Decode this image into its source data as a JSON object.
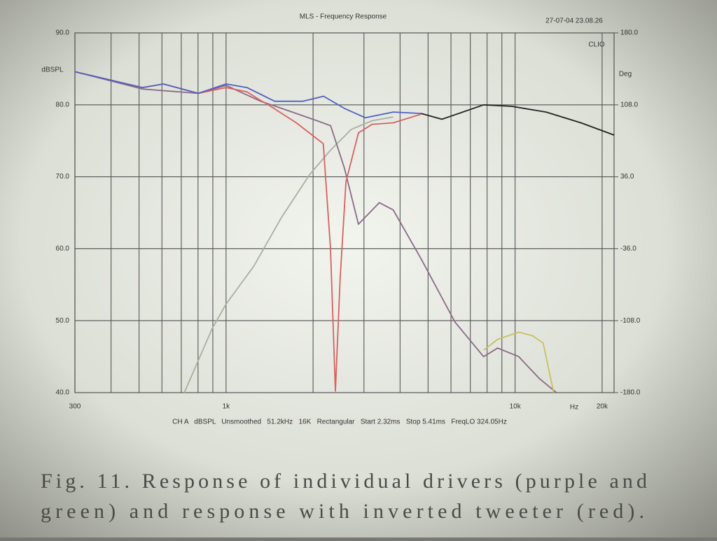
{
  "chart_data": {
    "type": "line",
    "title": "MLS - Frequency Response",
    "timestamp": "27-07-04 23.08.26",
    "ylabel": "dBSPL",
    "y2label": "Deg",
    "brand": "CLIO",
    "xlabel": "Hz",
    "footer": "CH A   dBSPL   Unsmoothed   51.2kHz   16K   Rectangular   Start 2.32ms   Stop 5.41ms   FreqLO 324.05Hz",
    "caption": [
      "Fig. 11. Response of individual drivers (purple and",
      "green) and response with inverted tweeter (red)."
    ],
    "xscale": "log",
    "grid": true,
    "xlim": [
      300,
      22000
    ],
    "xticks": [
      300,
      {
        "value": 1000,
        "label": "1k"
      },
      {
        "value": 10000,
        "label": "10k"
      },
      {
        "value": 20000,
        "label": "20k"
      }
    ],
    "xminorticks": [
      400,
      500,
      600,
      700,
      800,
      900,
      2000,
      3000,
      4000,
      5000,
      6000,
      7000,
      8000,
      9000
    ],
    "ylim": [
      40,
      90
    ],
    "yticks": [
      {
        "value": 40,
        "label": "40.0"
      },
      {
        "value": 50,
        "label": "50.0"
      },
      {
        "value": 60,
        "label": "60.0"
      },
      {
        "value": 70,
        "label": "70.0"
      },
      {
        "value": 80,
        "label": "80.0"
      },
      {
        "value": 90,
        "label": "90.0"
      }
    ],
    "y2lim": [
      -180,
      180
    ],
    "y2ticks": [
      {
        "value": -180,
        "label": "-180.0"
      },
      {
        "value": -108,
        "label": "-108.0"
      },
      {
        "value": -36,
        "label": "-36.0"
      },
      {
        "value": 36,
        "label": "36.0"
      },
      {
        "value": 108,
        "label": "108.0"
      },
      {
        "value": 180,
        "label": "180.0"
      }
    ],
    "series": [
      {
        "color": "#a8b0a0",
        "x": [
          717,
          895,
          1000,
          1248,
          1558,
          1946,
          2298,
          2713,
          3204,
          3788
        ],
        "values": [
          40,
          48.9,
          52.3,
          57.6,
          64.4,
          70.3,
          73.7,
          76.6,
          77.8,
          78.3
        ]
      },
      {
        "color": "#8a6a88",
        "x": [
          300,
          514,
          801,
          1000,
          1318,
          1558,
          2060,
          2300,
          2568,
          2870,
          3390,
          3788,
          4729,
          6200,
          7783,
          8700,
          10300,
          12100,
          13900
        ],
        "values": [
          84.6,
          82.2,
          81.6,
          82.7,
          80.5,
          79.5,
          77.8,
          77.1,
          71.2,
          63.4,
          66.4,
          65.4,
          58.6,
          49.8,
          45.0,
          46.2,
          45.0,
          42.0,
          40.0
        ]
      },
      {
        "color": "#c8c060",
        "x": [
          7783,
          8700,
          10300,
          11500,
          12500,
          13600
        ],
        "values": [
          45.9,
          47.4,
          48.4,
          47.9,
          46.9,
          40
        ]
      },
      {
        "color": "#d86060",
        "x": [
          300,
          514,
          607,
          801,
          1000,
          1181,
          1318,
          1400,
          1750,
          2170,
          2298,
          2390,
          2480,
          2600,
          2870,
          3200,
          3788,
          4729
        ],
        "values": [
          84.6,
          82.4,
          82.9,
          81.6,
          82.4,
          81.8,
          80.6,
          80.0,
          77.5,
          74.6,
          60,
          40.2,
          55.7,
          69.3,
          76.1,
          77.3,
          77.5,
          78.7
        ]
      },
      {
        "color": "#5060c0",
        "x": [
          300,
          514,
          607,
          801,
          1000,
          1181,
          1474,
          1841,
          2175,
          2568,
          3034,
          3788,
          4729
        ],
        "values": [
          84.6,
          82.4,
          82.9,
          81.6,
          82.9,
          82.4,
          80.5,
          80.5,
          81.2,
          79.5,
          78.2,
          79.0,
          78.8
        ]
      },
      {
        "color": "#222222",
        "x": [
          4729,
          5580,
          7783,
          9719,
          12800,
          16900,
          22000
        ],
        "values": [
          78.8,
          78.0,
          80.0,
          79.8,
          79.0,
          77.5,
          75.8
        ]
      }
    ]
  }
}
